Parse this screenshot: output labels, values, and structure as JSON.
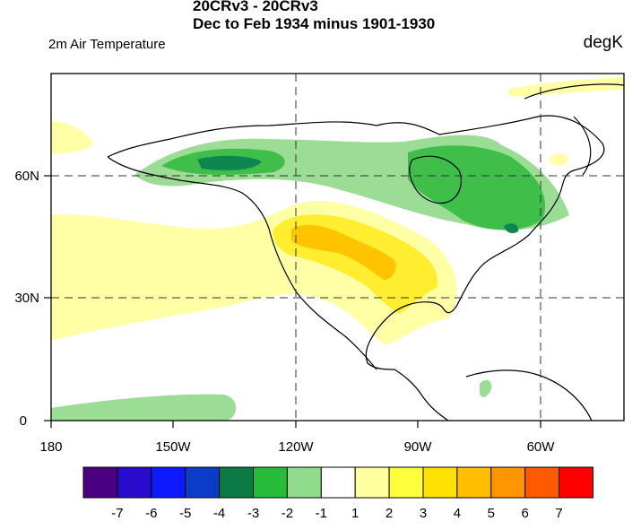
{
  "header": {
    "title_line1": "20CRv3 - 20CRv3",
    "title_line2": "Dec to Feb 1934 minus 1901-1930",
    "left_label": "2m Air Temperature",
    "right_label": "degK"
  },
  "map": {
    "x_ticks": [
      "180",
      "150W",
      "120W",
      "90W",
      "60W"
    ],
    "y_ticks": [
      "60N",
      "30N",
      "0"
    ],
    "gridlines": "dashed at 120W, 60W, 30N, 60N"
  },
  "colorbar": {
    "labels": [
      "-7",
      "-6",
      "-5",
      "-4",
      "-3",
      "-2",
      "-1",
      "1",
      "2",
      "3",
      "4",
      "5",
      "6",
      "7"
    ],
    "colors": [
      "#4b0082",
      "#2a0ccc",
      "#0d1aff",
      "#0a3cc9",
      "#0b7a45",
      "#27bb3a",
      "#90dc8d",
      "#ffffff",
      "#ffffa0",
      "#ffff3c",
      "#ffe100",
      "#ffbe00",
      "#ff9600",
      "#ff5a00",
      "#ff0000"
    ]
  },
  "colors": {
    "warm_light": "#ffffa6",
    "warm_mid": "#ffee30",
    "warm_strong": "#ffc400",
    "cool_light": "#9cdd95",
    "cool_mid": "#3fbe4a",
    "cool_strong": "#0e8650"
  }
}
